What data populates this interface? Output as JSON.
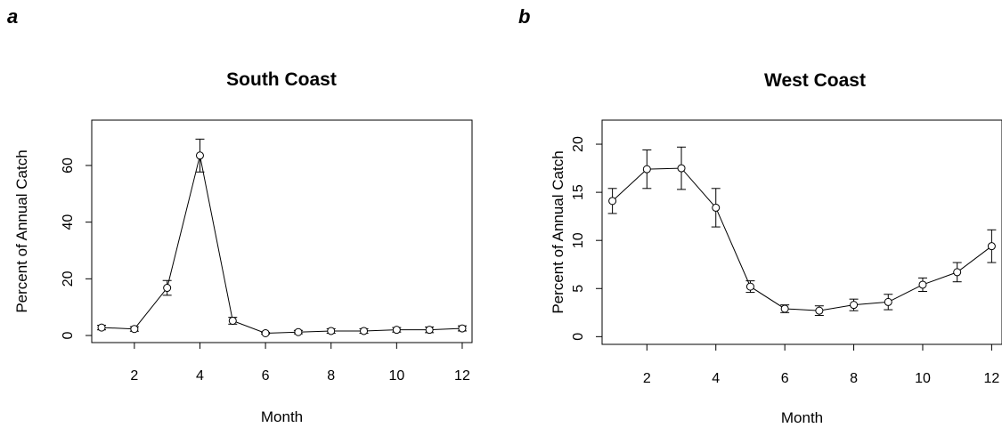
{
  "panels": [
    {
      "letter": "a"
    },
    {
      "letter": "b"
    }
  ],
  "chart_data": [
    {
      "type": "line",
      "title": "South Coast",
      "xlabel": "Month",
      "ylabel": "Percent of Annual Catch",
      "xlim": [
        0.7,
        12.3
      ],
      "ylim": [
        -2.5,
        76
      ],
      "xticks": [
        2,
        4,
        6,
        8,
        10,
        12
      ],
      "yticks": [
        0,
        20,
        40,
        60
      ],
      "grid": false,
      "series": [
        {
          "x": [
            1,
            2,
            3,
            4,
            5,
            6,
            7,
            8,
            9,
            10,
            11,
            12
          ],
          "y": [
            2.8,
            2.3,
            16.8,
            63.5,
            5.2,
            0.8,
            1.2,
            1.6,
            1.6,
            2.0,
            2.0,
            2.5
          ],
          "err": [
            0.8,
            0.8,
            2.6,
            5.8,
            1.2,
            0.3,
            0.6,
            0.8,
            0.8,
            0.8,
            1.0,
            0.9
          ]
        }
      ]
    },
    {
      "type": "line",
      "title": "West Coast",
      "xlabel": "Month",
      "ylabel": "Percent of Annual Catch",
      "xlim": [
        0.7,
        12.3
      ],
      "ylim": [
        -0.8,
        22.5
      ],
      "xticks": [
        2,
        4,
        6,
        8,
        10,
        12
      ],
      "yticks": [
        0,
        5,
        10,
        15,
        20
      ],
      "grid": false,
      "series": [
        {
          "x": [
            1,
            2,
            3,
            4,
            5,
            6,
            7,
            8,
            9,
            10,
            11,
            12
          ],
          "y": [
            14.1,
            17.4,
            17.5,
            13.4,
            5.2,
            2.9,
            2.7,
            3.3,
            3.6,
            5.4,
            6.7,
            9.4
          ],
          "err": [
            1.3,
            2.0,
            2.2,
            2.0,
            0.6,
            0.4,
            0.5,
            0.6,
            0.8,
            0.7,
            1.0,
            1.7
          ]
        }
      ]
    }
  ]
}
